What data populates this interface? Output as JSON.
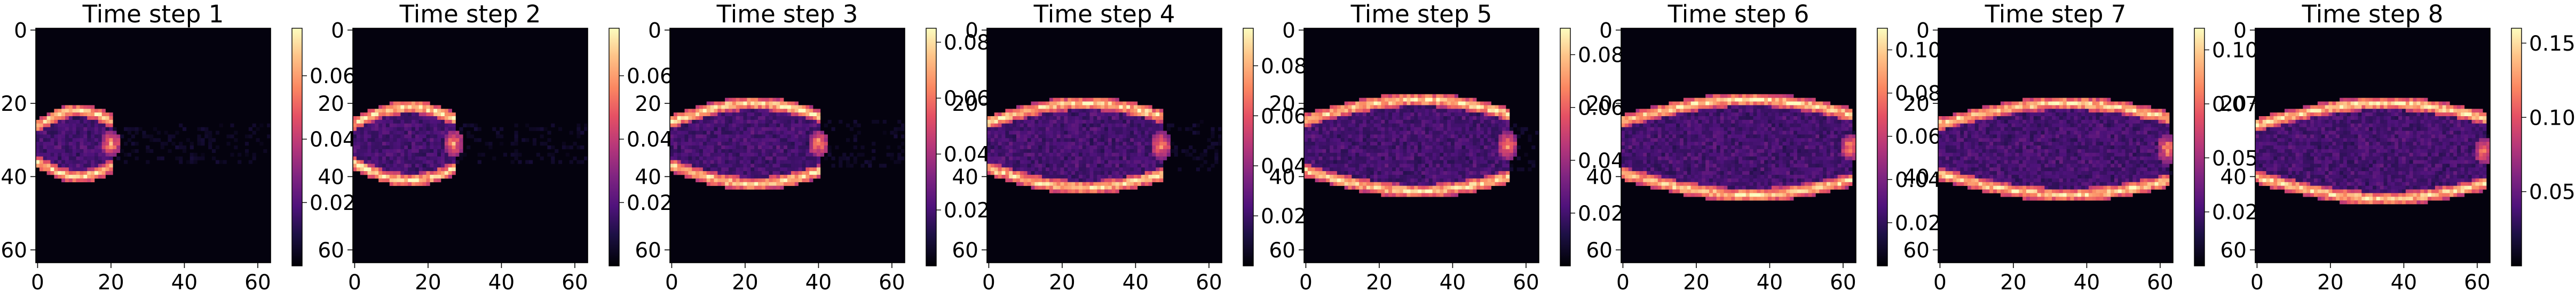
{
  "chart_data": {
    "type": "heatmap",
    "colormap": "magma",
    "panels": [
      {
        "title": "Time step 1",
        "vmin": 0,
        "vmax": 0.075,
        "cbar_ticks": [
          0.02,
          0.04,
          0.06
        ],
        "plume_tip_x": 20,
        "plume_y_range": [
          22,
          40
        ]
      },
      {
        "title": "Time step 2",
        "vmin": 0,
        "vmax": 0.075,
        "cbar_ticks": [
          0.02,
          0.04,
          0.06
        ],
        "plume_tip_x": 27,
        "plume_y_range": [
          21,
          41
        ]
      },
      {
        "title": "Time step 3",
        "vmin": 0,
        "vmax": 0.085,
        "cbar_ticks": [
          0.02,
          0.04,
          0.06,
          0.08
        ],
        "plume_tip_x": 40,
        "plume_y_range": [
          20,
          42
        ]
      },
      {
        "title": "Time step 4",
        "vmin": 0,
        "vmax": 0.095,
        "cbar_ticks": [
          0.02,
          0.04,
          0.06,
          0.08
        ],
        "plume_tip_x": 47,
        "plume_y_range": [
          20,
          43
        ]
      },
      {
        "title": "Time step 5",
        "vmin": 0,
        "vmax": 0.09,
        "cbar_ticks": [
          0.02,
          0.04,
          0.06,
          0.08
        ],
        "plume_tip_x": 55,
        "plume_y_range": [
          19,
          44
        ]
      },
      {
        "title": "Time step 6",
        "vmin": 0,
        "vmax": 0.11,
        "cbar_ticks": [
          0.02,
          0.04,
          0.06,
          0.08,
          0.1
        ],
        "plume_tip_x": 62,
        "plume_y_range": [
          19,
          45
        ]
      },
      {
        "title": "Time step 7",
        "vmin": 0,
        "vmax": 0.11,
        "cbar_ticks": [
          0.025,
          0.05,
          0.075,
          0.1
        ],
        "cbar_tick_labels": [
          "0.025",
          "0.050",
          "0.075",
          "0.100"
        ],
        "plume_tip_x": 62,
        "plume_y_range": [
          20,
          45
        ]
      },
      {
        "title": "Time step 8",
        "vmin": 0,
        "vmax": 0.16,
        "cbar_ticks": [
          0.05,
          0.1,
          0.15
        ],
        "plume_tip_x": 62,
        "plume_y_range": [
          20,
          46
        ]
      }
    ],
    "x_ticks": [
      0,
      20,
      40,
      60
    ],
    "y_ticks": [
      0,
      20,
      40,
      60
    ],
    "xlim": [
      0,
      64
    ],
    "ylim": [
      64,
      0
    ],
    "grid": false
  }
}
